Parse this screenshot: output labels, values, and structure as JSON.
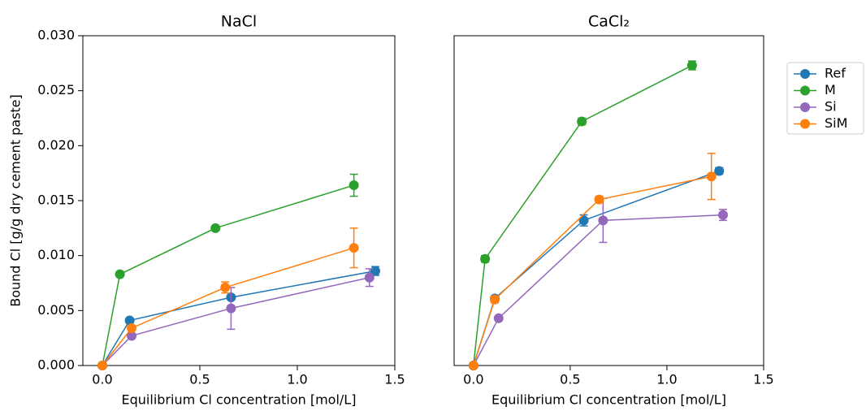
{
  "chart_data": [
    {
      "type": "line",
      "title": "NaCl",
      "xlabel": "Equilibrium Cl concentration [mol/L]",
      "ylabel": "Bound Cl [g/g dry cement paste]",
      "xlim": [
        -0.1,
        1.5
      ],
      "ylim": [
        0,
        0.03
      ],
      "xticks": [
        {
          "value": 0,
          "label": "0.0"
        },
        0.5,
        {
          "value": 1,
          "label": "1.0"
        },
        1.5
      ],
      "yticks": [
        {
          "value": 0,
          "label": "0.000"
        },
        0.005,
        {
          "value": 0.01,
          "label": "0.010"
        },
        0.015,
        {
          "value": 0.02,
          "label": "0.020"
        },
        0.025,
        {
          "value": 0.03,
          "label": "0.030"
        }
      ],
      "series": [
        {
          "color": "#1f77b4",
          "x": [
            0,
            0.14,
            0.66,
            1.4
          ],
          "values": [
            0,
            0.0041,
            0.0062,
            0.0086
          ],
          "errors": [
            0,
            0.0001,
            0.0002,
            0.0004
          ]
        },
        {
          "color": "#2ca02c",
          "x": [
            0,
            0.09,
            0.58,
            1.29
          ],
          "values": [
            0,
            0.0083,
            0.0125,
            0.0164
          ],
          "errors": [
            0,
            0.0001,
            0.0001,
            0.001
          ]
        },
        {
          "color": "#9467bd",
          "x": [
            0,
            0.15,
            0.66,
            1.37
          ],
          "values": [
            0,
            0.0027,
            0.0052,
            0.008
          ],
          "errors": [
            0,
            0.0001,
            0.0019,
            0.0008
          ]
        },
        {
          "color": "#ff7f0e",
          "x": [
            0,
            0.15,
            0.63,
            1.29
          ],
          "values": [
            0,
            0.0034,
            0.0071,
            0.0107
          ],
          "errors": [
            0,
            0.0001,
            0.0005,
            0.0018
          ]
        }
      ]
    },
    {
      "type": "line",
      "title": "CaCl₂",
      "xlabel": "Equilibrium Cl concentration [mol/L]",
      "xlim": [
        -0.1,
        1.5
      ],
      "ylim": [
        0,
        0.03
      ],
      "xticks": [
        {
          "value": 0,
          "label": "0.0"
        },
        0.5,
        {
          "value": 1,
          "label": "1.0"
        },
        1.5
      ],
      "legend": "outside-right",
      "series": [
        {
          "name": "Ref",
          "color": "#1f77b4",
          "x": [
            0,
            0.11,
            0.57,
            1.27
          ],
          "values": [
            0,
            0.0061,
            0.0132,
            0.0177
          ],
          "errors": [
            0,
            0.0002,
            0.0005,
            0.0003
          ]
        },
        {
          "name": "M",
          "color": "#2ca02c",
          "x": [
            0,
            0.06,
            0.56,
            1.13
          ],
          "values": [
            0,
            0.0097,
            0.0222,
            0.0273
          ],
          "errors": [
            0,
            0.0003,
            0.0003,
            0.0004
          ]
        },
        {
          "name": "Si",
          "color": "#9467bd",
          "x": [
            0,
            0.13,
            0.67,
            1.29
          ],
          "values": [
            0,
            0.0043,
            0.0132,
            0.0137
          ],
          "errors": [
            0,
            0.0001,
            0.002,
            0.0005
          ]
        },
        {
          "name": "SiM",
          "color": "#ff7f0e",
          "x": [
            0,
            0.11,
            0.65,
            1.23
          ],
          "values": [
            0,
            0.006,
            0.0151,
            0.0172
          ],
          "errors": [
            0,
            0.0003,
            0.0003,
            0.0021
          ]
        }
      ]
    }
  ]
}
